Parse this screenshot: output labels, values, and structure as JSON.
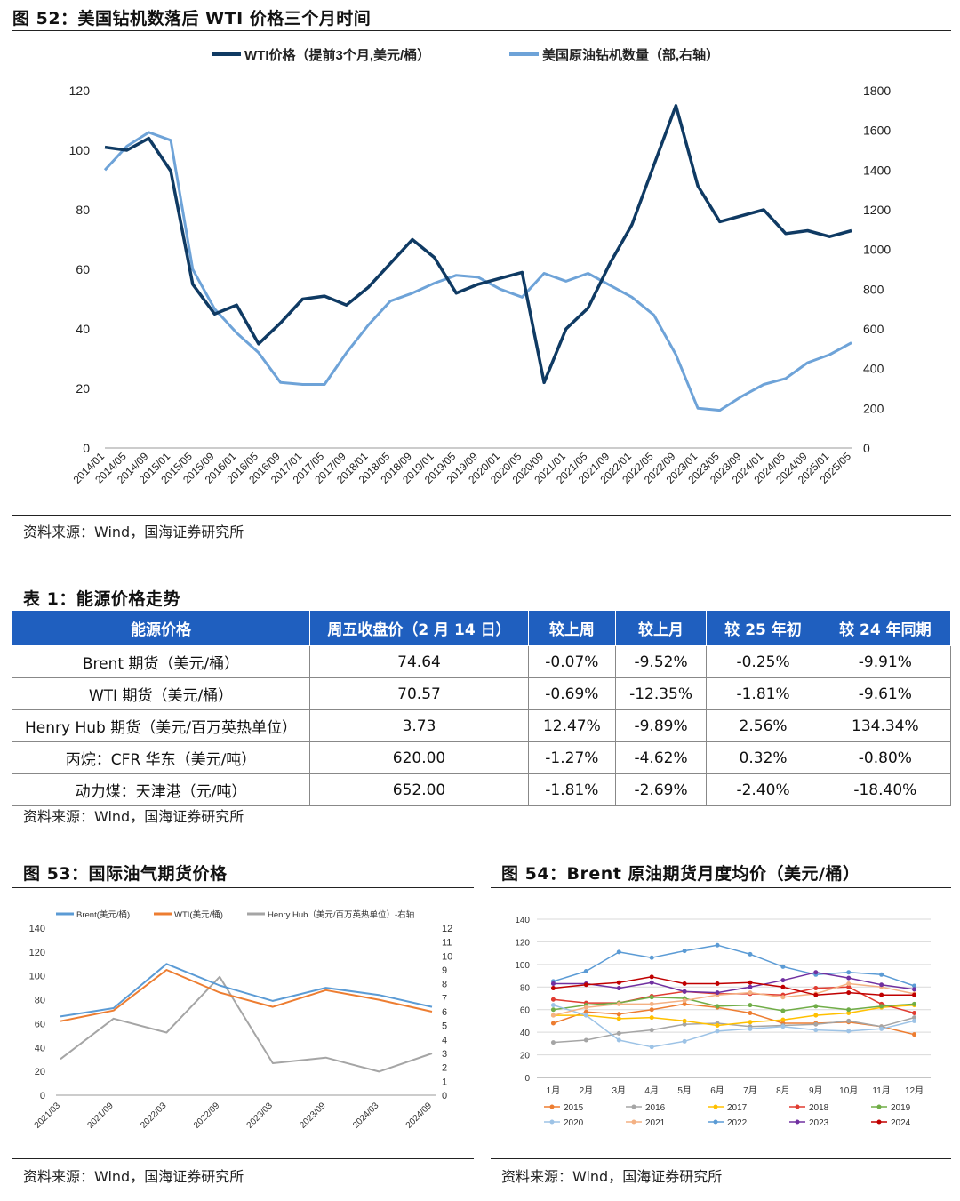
{
  "fig52": {
    "title": "图 52：美国钻机数落后 WTI 价格三个月时间",
    "legend": [
      "WTI价格（提前3个月,美元/桶）",
      "美国原油钻机数量（部,右轴）"
    ],
    "colors": {
      "wti": "#0f3a63",
      "rig": "#6ea3d8"
    },
    "left_ticks": [
      "0",
      "20",
      "40",
      "60",
      "80",
      "100",
      "120"
    ],
    "right_ticks": [
      "0",
      "200",
      "400",
      "600",
      "800",
      "1000",
      "1200",
      "1400",
      "1600",
      "1800"
    ],
    "x_ticks": [
      "2014/01",
      "2014/05",
      "2014/09",
      "2015/01",
      "2015/05",
      "2015/09",
      "2016/01",
      "2016/05",
      "2016/09",
      "2017/01",
      "2017/05",
      "2017/09",
      "2018/01",
      "2018/05",
      "2018/09",
      "2019/01",
      "2019/05",
      "2019/09",
      "2020/01",
      "2020/05",
      "2020/09",
      "2021/01",
      "2021/05",
      "2021/09",
      "2022/01",
      "2022/05",
      "2022/09",
      "2023/01",
      "2023/05",
      "2023/09",
      "2024/01",
      "2024/05",
      "2024/09",
      "2025/01",
      "2025/05"
    ],
    "source": "资料来源：Wind，国海证券研究所"
  },
  "chart_data": [
    {
      "type": "line",
      "title": "图 52：美国钻机数落后 WTI 价格三个月时间",
      "x": [
        "2014/01",
        "2014/05",
        "2014/09",
        "2015/01",
        "2015/05",
        "2015/09",
        "2016/01",
        "2016/05",
        "2016/09",
        "2017/01",
        "2017/05",
        "2017/09",
        "2018/01",
        "2018/05",
        "2018/09",
        "2019/01",
        "2019/05",
        "2019/09",
        "2020/01",
        "2020/05",
        "2020/09",
        "2021/01",
        "2021/05",
        "2021/09",
        "2022/01",
        "2022/05",
        "2022/09",
        "2023/01",
        "2023/05",
        "2023/09",
        "2024/01",
        "2024/05",
        "2024/09",
        "2025/01",
        "2025/05"
      ],
      "series": [
        {
          "name": "WTI价格（提前3个月,美元/桶）",
          "axis": "left",
          "values": [
            101,
            100,
            104,
            93,
            55,
            45,
            48,
            35,
            42,
            50,
            51,
            48,
            54,
            62,
            70,
            64,
            52,
            55,
            57,
            59,
            22,
            40,
            47,
            62,
            75,
            95,
            115,
            88,
            76,
            78,
            80,
            72,
            73,
            71,
            73
          ]
        },
        {
          "name": "美国原油钻机数量（部,右轴）",
          "axis": "right",
          "values": [
            1400,
            1520,
            1590,
            1550,
            900,
            700,
            580,
            480,
            330,
            320,
            320,
            480,
            620,
            740,
            780,
            830,
            870,
            860,
            800,
            760,
            880,
            840,
            880,
            820,
            760,
            670,
            470,
            200,
            190,
            260,
            320,
            350,
            430,
            470,
            530
          ]
        }
      ],
      "ylim_left": [
        0,
        120
      ],
      "ylim_right": [
        0,
        1800
      ],
      "legend": "top"
    },
    {
      "type": "line",
      "title": "图 53：国际油气期货价格",
      "x": [
        "2021/03",
        "2021/09",
        "2022/03",
        "2022/09",
        "2023/03",
        "2023/09",
        "2024/03",
        "2024/09"
      ],
      "series": [
        {
          "name": "Brent(美元/桶)",
          "axis": "left",
          "values": [
            66,
            73,
            110,
            92,
            79,
            90,
            84,
            74
          ]
        },
        {
          "name": "WTI(美元/桶)",
          "axis": "left",
          "values": [
            62,
            71,
            105,
            86,
            74,
            88,
            80,
            70
          ]
        },
        {
          "name": "Henry Hub（美元/百万英热单位）-右轴",
          "axis": "right",
          "values": [
            2.6,
            5.5,
            4.5,
            8.5,
            2.3,
            2.7,
            1.7,
            3.0
          ]
        }
      ],
      "ylim_left": [
        0,
        140
      ],
      "ylim_right": [
        0,
        12
      ]
    },
    {
      "type": "line",
      "title": "图 54：Brent 原油期货月度均价（美元/桶）",
      "categories": [
        "1月",
        "2月",
        "3月",
        "4月",
        "5月",
        "6月",
        "7月",
        "8月",
        "9月",
        "10月",
        "11月",
        "12月"
      ],
      "series": [
        {
          "name": "2015",
          "values": [
            48,
            58,
            56,
            60,
            65,
            62,
            57,
            48,
            48,
            49,
            45,
            38
          ]
        },
        {
          "name": "2016",
          "values": [
            31,
            33,
            39,
            42,
            47,
            48,
            45,
            46,
            47,
            50,
            45,
            53
          ]
        },
        {
          "name": "2017",
          "values": [
            55,
            55,
            52,
            53,
            50,
            46,
            49,
            51,
            55,
            57,
            62,
            64
          ]
        },
        {
          "name": "2018",
          "values": [
            69,
            66,
            66,
            72,
            76,
            74,
            74,
            73,
            79,
            80,
            65,
            57
          ]
        },
        {
          "name": "2019",
          "values": [
            60,
            64,
            66,
            71,
            70,
            63,
            64,
            59,
            63,
            60,
            63,
            65
          ]
        },
        {
          "name": "2020",
          "values": [
            64,
            55,
            33,
            27,
            32,
            41,
            43,
            45,
            42,
            41,
            43,
            50
          ]
        },
        {
          "name": "2021",
          "values": [
            55,
            62,
            65,
            65,
            68,
            73,
            75,
            71,
            74,
            83,
            80,
            74
          ]
        },
        {
          "name": "2022",
          "values": [
            85,
            94,
            111,
            106,
            112,
            117,
            109,
            98,
            91,
            93,
            91,
            81
          ]
        },
        {
          "name": "2023",
          "values": [
            83,
            83,
            79,
            84,
            76,
            75,
            80,
            86,
            93,
            88,
            82,
            78
          ]
        },
        {
          "name": "2024",
          "values": [
            79,
            82,
            84,
            89,
            83,
            83,
            84,
            80,
            73,
            75,
            73,
            73
          ]
        }
      ],
      "ylim": [
        0,
        140
      ]
    }
  ],
  "table1": {
    "title": "表 1：能源价格走势",
    "headers": [
      "能源价格",
      "周五收盘价（2 月 14 日）",
      "较上周",
      "较上月",
      "较 25 年初",
      "较 24 年同期"
    ],
    "rows": [
      [
        "Brent 期货（美元/桶）",
        "74.64",
        "-0.07%",
        "-9.52%",
        "-0.25%",
        "-9.91%"
      ],
      [
        "WTI 期货（美元/桶）",
        "70.57",
        "-0.69%",
        "-12.35%",
        "-1.81%",
        "-9.61%"
      ],
      [
        "Henry Hub 期货（美元/百万英热单位）",
        "3.73",
        "12.47%",
        "-9.89%",
        "2.56%",
        "134.34%"
      ],
      [
        "丙烷：CFR 华东（美元/吨）",
        "620.00",
        "-1.27%",
        "-4.62%",
        "0.32%",
        "-0.80%"
      ],
      [
        "动力煤：天津港（元/吨）",
        "652.00",
        "-1.81%",
        "-2.69%",
        "-2.40%",
        "-18.40%"
      ]
    ],
    "source": "资料来源：Wind，国海证券研究所",
    "header_color": "#1f5fbf"
  },
  "fig53": {
    "title": "图 53：国际油气期货价格",
    "legend": [
      "Brent(美元/桶)",
      "WTI(美元/桶)",
      "Henry Hub（美元/百万英热单位）-右轴"
    ],
    "colors": {
      "brent": "#5b9bd5",
      "wti": "#ed7d31",
      "hh": "#a5a5a5"
    },
    "left_ticks": [
      "0",
      "20",
      "40",
      "60",
      "80",
      "100",
      "120",
      "140"
    ],
    "right_ticks": [
      "0",
      "1",
      "2",
      "3",
      "4",
      "5",
      "6",
      "7",
      "8",
      "9",
      "10",
      "11",
      "12"
    ],
    "x_ticks": [
      "2021/03",
      "2021/09",
      "2022/03",
      "2022/09",
      "2023/03",
      "2023/09",
      "2024/03",
      "2024/09"
    ],
    "source": "资料来源：Wind，国海证券研究所"
  },
  "fig54": {
    "title": "图 54：Brent 原油期货月度均价（美元/桶）",
    "y_ticks": [
      "0",
      "20",
      "40",
      "60",
      "80",
      "100",
      "120",
      "140"
    ],
    "legend": [
      "2015",
      "2016",
      "2017",
      "2018",
      "2019",
      "2020",
      "2021",
      "2022",
      "2023",
      "2024"
    ],
    "colors": [
      "#ed7d31",
      "#a5a5a5",
      "#ffc000",
      "#e03c31",
      "#70ad47",
      "#9dc3e6",
      "#f4b183",
      "#5b9bd5",
      "#7030a0",
      "#c00000"
    ],
    "source": "资料来源：Wind，国海证券研究所"
  }
}
